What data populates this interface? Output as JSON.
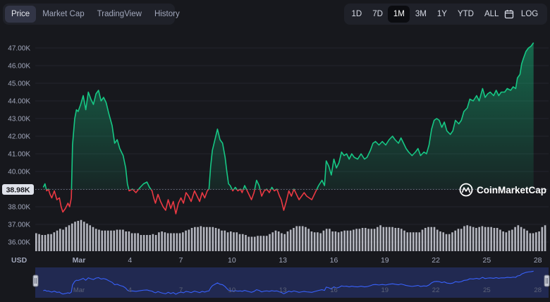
{
  "view_tabs": [
    {
      "label": "Price",
      "active": true
    },
    {
      "label": "Market Cap",
      "active": false
    },
    {
      "label": "TradingView",
      "active": false
    },
    {
      "label": "History",
      "active": false
    }
  ],
  "ranges": [
    {
      "label": "1D",
      "active": false
    },
    {
      "label": "7D",
      "active": false
    },
    {
      "label": "1M",
      "active": true
    },
    {
      "label": "3M",
      "active": false
    },
    {
      "label": "1Y",
      "active": false
    },
    {
      "label": "YTD",
      "active": false
    },
    {
      "label": "ALL",
      "active": false
    }
  ],
  "calendar_icon": "calendar-icon",
  "log_label": "LOG",
  "currency_label": "USD",
  "watermark": "CoinMarketCap",
  "colors": {
    "up": "#16c784",
    "down": "#ea3943",
    "volume": "#c4c7d0",
    "navigator": "#3861fb",
    "background": "#17181d"
  },
  "chart_data": {
    "type": "area",
    "title": "Price",
    "ylabel": "USD",
    "ylim": [
      35500,
      47600
    ],
    "y_ticks": [
      {
        "value": 36000,
        "label": "36.00K"
      },
      {
        "value": 37000,
        "label": "37.00K"
      },
      {
        "value": 38000,
        "label": "38.00K"
      },
      {
        "value": 39000,
        "label": "39.00K"
      },
      {
        "value": 40000,
        "label": "40.00K"
      },
      {
        "value": 41000,
        "label": "41.00K"
      },
      {
        "value": 42000,
        "label": "42.00K"
      },
      {
        "value": 43000,
        "label": "43.00K"
      },
      {
        "value": 44000,
        "label": "44.00K"
      },
      {
        "value": 45000,
        "label": "45.00K"
      },
      {
        "value": 46000,
        "label": "46.00K"
      },
      {
        "value": 47000,
        "label": "47.00K"
      }
    ],
    "x_ticks": [
      {
        "day": 1,
        "label": "Mar"
      },
      {
        "day": 4,
        "label": "4"
      },
      {
        "day": 7,
        "label": "7"
      },
      {
        "day": 10,
        "label": "10"
      },
      {
        "day": 13,
        "label": "13"
      },
      {
        "day": 16,
        "label": "16"
      },
      {
        "day": 19,
        "label": "19"
      },
      {
        "day": 22,
        "label": "22"
      },
      {
        "day": 25,
        "label": "25"
      },
      {
        "day": 28,
        "label": "28"
      }
    ],
    "baseline": {
      "value": 38980,
      "label": "38.98K"
    },
    "series": [
      {
        "name": "Price",
        "points": [
          [
            -1.1,
            39100
          ],
          [
            -1.0,
            39300
          ],
          [
            -0.9,
            38900
          ],
          [
            -0.8,
            39000
          ],
          [
            -0.7,
            38700
          ],
          [
            -0.6,
            38500
          ],
          [
            -0.45,
            38900
          ],
          [
            -0.3,
            38400
          ],
          [
            -0.15,
            38500
          ],
          [
            -0.05,
            38000
          ],
          [
            0.05,
            37700
          ],
          [
            0.2,
            37900
          ],
          [
            0.35,
            38200
          ],
          [
            0.45,
            38000
          ],
          [
            0.55,
            38500
          ],
          [
            0.62,
            41500
          ],
          [
            0.75,
            43000
          ],
          [
            0.85,
            43500
          ],
          [
            0.95,
            43400
          ],
          [
            1.1,
            43800
          ],
          [
            1.25,
            44300
          ],
          [
            1.4,
            43500
          ],
          [
            1.55,
            44500
          ],
          [
            1.7,
            44100
          ],
          [
            1.85,
            43800
          ],
          [
            2.0,
            44400
          ],
          [
            2.15,
            44600
          ],
          [
            2.3,
            44000
          ],
          [
            2.45,
            44200
          ],
          [
            2.6,
            43900
          ],
          [
            2.75,
            43300
          ],
          [
            2.95,
            42600
          ],
          [
            3.1,
            41600
          ],
          [
            3.25,
            41800
          ],
          [
            3.4,
            41300
          ],
          [
            3.6,
            40900
          ],
          [
            3.75,
            40200
          ],
          [
            3.85,
            39300
          ],
          [
            3.95,
            38900
          ],
          [
            4.15,
            39000
          ],
          [
            4.35,
            38800
          ],
          [
            4.6,
            39100
          ],
          [
            4.8,
            39300
          ],
          [
            5.0,
            39400
          ],
          [
            5.15,
            39100
          ],
          [
            5.3,
            38900
          ],
          [
            5.4,
            38500
          ],
          [
            5.5,
            38200
          ],
          [
            5.65,
            38700
          ],
          [
            5.8,
            38300
          ],
          [
            5.95,
            38000
          ],
          [
            6.1,
            37800
          ],
          [
            6.25,
            38400
          ],
          [
            6.4,
            37900
          ],
          [
            6.55,
            38300
          ],
          [
            6.7,
            37600
          ],
          [
            6.85,
            38200
          ],
          [
            7.0,
            38500
          ],
          [
            7.15,
            38200
          ],
          [
            7.3,
            38800
          ],
          [
            7.45,
            38600
          ],
          [
            7.6,
            38300
          ],
          [
            7.8,
            38900
          ],
          [
            7.95,
            38600
          ],
          [
            8.1,
            38300
          ],
          [
            8.25,
            38800
          ],
          [
            8.4,
            38500
          ],
          [
            8.55,
            38900
          ],
          [
            8.65,
            39000
          ],
          [
            8.75,
            40300
          ],
          [
            8.85,
            41200
          ],
          [
            9.0,
            41800
          ],
          [
            9.15,
            42400
          ],
          [
            9.3,
            41800
          ],
          [
            9.45,
            41600
          ],
          [
            9.6,
            40800
          ],
          [
            9.7,
            40000
          ],
          [
            9.8,
            39300
          ],
          [
            9.9,
            39200
          ],
          [
            10.05,
            38900
          ],
          [
            10.2,
            39100
          ],
          [
            10.35,
            38900
          ],
          [
            10.5,
            39000
          ],
          [
            10.6,
            38800
          ],
          [
            10.75,
            39200
          ],
          [
            10.9,
            38900
          ],
          [
            11.05,
            38600
          ],
          [
            11.15,
            38400
          ],
          [
            11.3,
            38800
          ],
          [
            11.45,
            39500
          ],
          [
            11.6,
            39200
          ],
          [
            11.75,
            38600
          ],
          [
            11.9,
            38900
          ],
          [
            12.05,
            39000
          ],
          [
            12.2,
            38800
          ],
          [
            12.35,
            39100
          ],
          [
            12.5,
            38900
          ],
          [
            12.65,
            39000
          ],
          [
            12.8,
            38600
          ],
          [
            12.9,
            38400
          ],
          [
            13.05,
            37800
          ],
          [
            13.2,
            38300
          ],
          [
            13.35,
            38900
          ],
          [
            13.5,
            38600
          ],
          [
            13.65,
            39000
          ],
          [
            13.8,
            38700
          ],
          [
            13.95,
            38400
          ],
          [
            14.1,
            38600
          ],
          [
            14.25,
            38800
          ],
          [
            14.4,
            38600
          ],
          [
            14.55,
            38500
          ],
          [
            14.7,
            38400
          ],
          [
            14.85,
            38700
          ],
          [
            14.95,
            38900
          ],
          [
            15.1,
            39200
          ],
          [
            15.3,
            39500
          ],
          [
            15.45,
            39200
          ],
          [
            15.55,
            40600
          ],
          [
            15.7,
            40300
          ],
          [
            15.85,
            39800
          ],
          [
            16.0,
            40700
          ],
          [
            16.15,
            40200
          ],
          [
            16.3,
            40500
          ],
          [
            16.45,
            41100
          ],
          [
            16.6,
            40900
          ],
          [
            16.75,
            41000
          ],
          [
            16.9,
            40700
          ],
          [
            17.05,
            41000
          ],
          [
            17.2,
            40800
          ],
          [
            17.4,
            40700
          ],
          [
            17.6,
            41000
          ],
          [
            17.8,
            40700
          ],
          [
            17.95,
            40800
          ],
          [
            18.15,
            41200
          ],
          [
            18.3,
            41600
          ],
          [
            18.45,
            41700
          ],
          [
            18.65,
            41500
          ],
          [
            18.85,
            41700
          ],
          [
            19.05,
            41500
          ],
          [
            19.25,
            41800
          ],
          [
            19.45,
            42000
          ],
          [
            19.6,
            41800
          ],
          [
            19.8,
            41600
          ],
          [
            19.95,
            41900
          ],
          [
            20.1,
            41600
          ],
          [
            20.25,
            41300
          ],
          [
            20.4,
            41100
          ],
          [
            20.6,
            40900
          ],
          [
            20.8,
            41100
          ],
          [
            20.95,
            41300
          ],
          [
            21.1,
            40900
          ],
          [
            21.3,
            41100
          ],
          [
            21.45,
            41000
          ],
          [
            21.6,
            41500
          ],
          [
            21.75,
            42400
          ],
          [
            21.9,
            42900
          ],
          [
            22.05,
            43000
          ],
          [
            22.2,
            42900
          ],
          [
            22.35,
            42500
          ],
          [
            22.5,
            42800
          ],
          [
            22.65,
            42300
          ],
          [
            22.85,
            42100
          ],
          [
            23.0,
            42300
          ],
          [
            23.15,
            42900
          ],
          [
            23.35,
            42700
          ],
          [
            23.5,
            42900
          ],
          [
            23.65,
            43400
          ],
          [
            23.85,
            43600
          ],
          [
            24.0,
            44100
          ],
          [
            24.2,
            44000
          ],
          [
            24.4,
            44300
          ],
          [
            24.55,
            44000
          ],
          [
            24.75,
            44700
          ],
          [
            24.9,
            44200
          ],
          [
            25.05,
            44400
          ],
          [
            25.2,
            44500
          ],
          [
            25.4,
            44300
          ],
          [
            25.55,
            44600
          ],
          [
            25.7,
            44300
          ],
          [
            25.85,
            44500
          ],
          [
            26.05,
            44500
          ],
          [
            26.2,
            44700
          ],
          [
            26.4,
            44600
          ],
          [
            26.55,
            44800
          ],
          [
            26.7,
            44700
          ],
          [
            26.8,
            45300
          ],
          [
            26.95,
            45500
          ],
          [
            27.05,
            46100
          ],
          [
            27.15,
            46400
          ],
          [
            27.3,
            46800
          ],
          [
            27.45,
            47000
          ],
          [
            27.6,
            47100
          ],
          [
            27.75,
            47300
          ]
        ]
      }
    ],
    "volume": [
      36500,
      36450,
      36400,
      36400,
      36450,
      36450,
      36550,
      36650,
      36750,
      36700,
      36850,
      36950,
      37050,
      37150,
      37200,
      37250,
      37150,
      37050,
      36950,
      36850,
      36750,
      36700,
      36650,
      36650,
      36650,
      36650,
      36650,
      36700,
      36700,
      36700,
      36600,
      36600,
      36500,
      36500,
      36500,
      36400,
      36400,
      36400,
      36400,
      36450,
      36400,
      36550,
      36600,
      36550,
      36500,
      36500,
      36500,
      36500,
      36500,
      36550,
      36650,
      36700,
      36800,
      36850,
      36850,
      36900,
      36850,
      36850,
      36850,
      36850,
      36800,
      36750,
      36650,
      36650,
      36550,
      36600,
      36550,
      36550,
      36450,
      36450,
      36400,
      36300,
      36300,
      36300,
      36350,
      36350,
      36350,
      36350,
      36450,
      36550,
      36650,
      36600,
      36500,
      36450,
      36600,
      36700,
      36800,
      36900,
      36900,
      36900,
      36850,
      36750,
      36600,
      36550,
      36550,
      36500,
      36650,
      36750,
      36750,
      36600,
      36600,
      36550,
      36600,
      36650,
      36650,
      36650,
      36700,
      36750,
      36750,
      36800,
      36800,
      36750,
      36750,
      36750,
      36850,
      36950,
      36850,
      36850,
      36850,
      36850,
      36800,
      36800,
      36750,
      36650,
      36550,
      36550,
      36550,
      36550,
      36550,
      36700,
      36800,
      36850,
      36850,
      36850,
      36700,
      36600,
      36550,
      36450,
      36450,
      36550,
      36650,
      36750,
      36750,
      36900,
      36950,
      36900,
      36850,
      36800,
      36850,
      36900,
      36850,
      36850,
      36850,
      36800,
      36800,
      36700,
      36600,
      36550,
      36650,
      36700,
      36850,
      36950,
      36850,
      36750,
      36650,
      36500,
      36500,
      36550,
      36600,
      36850,
      36950
    ]
  }
}
